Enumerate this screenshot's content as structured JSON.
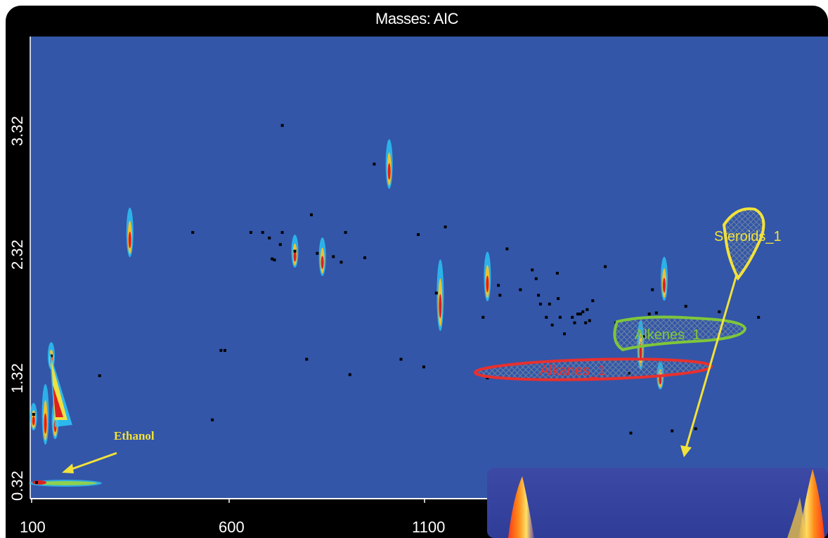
{
  "chart_data": {
    "type": "heatmap",
    "title": "Masses: AIC",
    "xlabel": "",
    "ylabel": "",
    "xlim": [
      100,
      1150
    ],
    "ylim": [
      0.32,
      3.6
    ],
    "x_ticks": [
      "100",
      "600",
      "1100"
    ],
    "y_ticks": [
      "0.32",
      "1.32",
      "2.32",
      "3.32"
    ],
    "background_color": "#3356a8",
    "peaks": [
      {
        "x": 105,
        "y": 0.95,
        "h": 0.25
      },
      {
        "x": 135,
        "y": 0.97,
        "h": 0.55
      },
      {
        "x": 160,
        "y": 0.92,
        "h": 0.35
      },
      {
        "x": 150,
        "y": 1.5,
        "h": 0.25
      },
      {
        "x": 350,
        "y": 2.62,
        "h": 0.45
      },
      {
        "x": 1010,
        "y": 3.24,
        "h": 0.45
      },
      {
        "x": 840,
        "y": 2.4,
        "h": 0.35
      },
      {
        "x": 770,
        "y": 2.45,
        "h": 0.3
      },
      {
        "x": 1140,
        "y": 2.05,
        "h": 0.65
      },
      {
        "x": 1260,
        "y": 2.22,
        "h": 0.45
      },
      {
        "x": 1710,
        "y": 2.2,
        "h": 0.4
      },
      {
        "x": 1650,
        "y": 1.6,
        "h": 0.45
      },
      {
        "x": 1700,
        "y": 1.32,
        "h": 0.25
      }
    ],
    "identified_points": [
      [
        105,
        0.97
      ],
      [
        150,
        1.5
      ],
      [
        273,
        1.32
      ],
      [
        510,
        2.62
      ],
      [
        560,
        0.92
      ],
      [
        582,
        1.55
      ],
      [
        592,
        1.55
      ],
      [
        658,
        2.62
      ],
      [
        688,
        2.62
      ],
      [
        705,
        2.57
      ],
      [
        712,
        2.38
      ],
      [
        718,
        2.37
      ],
      [
        733,
        2.51
      ],
      [
        738,
        2.62
      ],
      [
        738,
        3.59
      ],
      [
        770,
        2.45
      ],
      [
        800,
        1.47
      ],
      [
        812,
        2.78
      ],
      [
        827,
        2.43
      ],
      [
        868,
        2.4
      ],
      [
        888,
        2.35
      ],
      [
        899,
        2.62
      ],
      [
        910,
        1.33
      ],
      [
        948,
        2.39
      ],
      [
        972,
        3.24
      ],
      [
        1040,
        1.47
      ],
      [
        1084,
        2.6
      ],
      [
        1098,
        1.4
      ],
      [
        1130,
        2.07
      ],
      [
        1153,
        2.67
      ],
      [
        1249,
        1.85
      ],
      [
        1260,
        1.3
      ],
      [
        1288,
        2.14
      ],
      [
        1292,
        2.05
      ],
      [
        1310,
        2.47
      ],
      [
        1344,
        2.1
      ],
      [
        1374,
        2.28
      ],
      [
        1384,
        2.2
      ],
      [
        1390,
        2.05
      ],
      [
        1395,
        1.97
      ],
      [
        1410,
        1.85
      ],
      [
        1418,
        1.97
      ],
      [
        1425,
        1.78
      ],
      [
        1438,
        2.25
      ],
      [
        1440,
        2.02
      ],
      [
        1445,
        1.85
      ],
      [
        1456,
        1.7
      ],
      [
        1476,
        1.85
      ],
      [
        1482,
        1.8
      ],
      [
        1490,
        1.88
      ],
      [
        1497,
        1.88
      ],
      [
        1503,
        1.9
      ],
      [
        1510,
        1.8
      ],
      [
        1514,
        1.92
      ],
      [
        1520,
        1.82
      ],
      [
        1528,
        2.0
      ],
      [
        1560,
        2.31
      ],
      [
        1587,
        1.8
      ],
      [
        1620,
        1.34
      ],
      [
        1625,
        0.8
      ],
      [
        1660,
        1.68
      ],
      [
        1672,
        1.88
      ],
      [
        1680,
        2.1
      ],
      [
        1690,
        1.89
      ],
      [
        1730,
        0.82
      ],
      [
        1765,
        1.95
      ],
      [
        1790,
        0.84
      ],
      [
        1850,
        1.9
      ],
      [
        1950,
        1.85
      ]
    ],
    "regions": [
      {
        "name": "Alkanes_1",
        "color": "#e8302e"
      },
      {
        "name": "Alkenes_1",
        "color": "#7fc63a"
      },
      {
        "name": "Steroids_1",
        "color": "#f2e23a"
      }
    ],
    "annotations": [
      {
        "text": "Ethanol",
        "color": "#f2e23a"
      }
    ]
  }
}
